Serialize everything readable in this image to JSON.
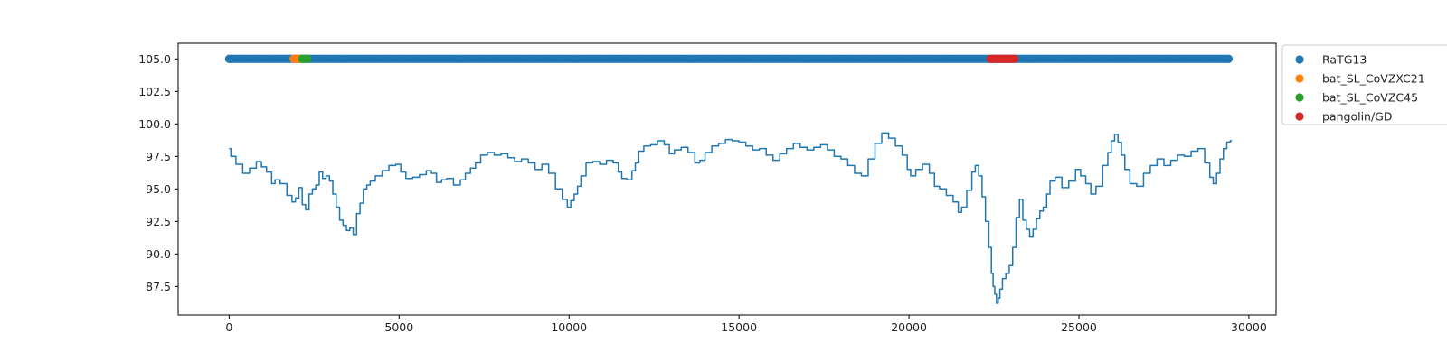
{
  "chart_data": {
    "type": "line",
    "title": "",
    "xlabel": "",
    "ylabel": "",
    "xlim": [
      -1500,
      30800
    ],
    "ylim": [
      85.3,
      106.2
    ],
    "x_ticks": [
      0,
      5000,
      10000,
      15000,
      20000,
      25000,
      30000
    ],
    "y_ticks": [
      87.5,
      90.0,
      92.5,
      95.0,
      97.5,
      100.0,
      102.5,
      105.0
    ],
    "y_tick_labels": [
      "87.5",
      "90.0",
      "92.5",
      "95.0",
      "97.5",
      "100.0",
      "102.5",
      "105.0"
    ],
    "grid": false,
    "legend_location": "outside-upper-right",
    "identity_line": {
      "color": "#1f77b4",
      "points": [
        [
          0,
          98.1
        ],
        [
          100,
          97.5
        ],
        [
          300,
          96.9
        ],
        [
          500,
          96.2
        ],
        [
          700,
          96.6
        ],
        [
          900,
          97.1
        ],
        [
          1000,
          96.7
        ],
        [
          1200,
          96.3
        ],
        [
          1300,
          95.4
        ],
        [
          1400,
          95.7
        ],
        [
          1600,
          95.4
        ],
        [
          1800,
          94.5
        ],
        [
          1900,
          94.0
        ],
        [
          2000,
          94.3
        ],
        [
          2100,
          95.1
        ],
        [
          2200,
          93.8
        ],
        [
          2300,
          93.4
        ],
        [
          2400,
          94.6
        ],
        [
          2500,
          95.0
        ],
        [
          2600,
          95.3
        ],
        [
          2700,
          96.3
        ],
        [
          2800,
          95.8
        ],
        [
          2900,
          96.0
        ],
        [
          3000,
          95.6
        ],
        [
          3100,
          94.6
        ],
        [
          3200,
          93.6
        ],
        [
          3300,
          92.6
        ],
        [
          3400,
          92.2
        ],
        [
          3500,
          91.8
        ],
        [
          3600,
          92.0
        ],
        [
          3700,
          91.5
        ],
        [
          3800,
          93.1
        ],
        [
          3900,
          93.9
        ],
        [
          4000,
          95.0
        ],
        [
          4100,
          95.3
        ],
        [
          4200,
          95.6
        ],
        [
          4400,
          96.0
        ],
        [
          4600,
          96.4
        ],
        [
          4800,
          96.8
        ],
        [
          5000,
          96.9
        ],
        [
          5100,
          96.3
        ],
        [
          5300,
          95.8
        ],
        [
          5500,
          95.9
        ],
        [
          5700,
          96.1
        ],
        [
          5900,
          96.4
        ],
        [
          6000,
          96.2
        ],
        [
          6200,
          95.5
        ],
        [
          6300,
          95.7
        ],
        [
          6500,
          95.8
        ],
        [
          6700,
          95.3
        ],
        [
          6900,
          95.7
        ],
        [
          7000,
          96.2
        ],
        [
          7200,
          96.6
        ],
        [
          7300,
          97.0
        ],
        [
          7500,
          97.6
        ],
        [
          7700,
          97.8
        ],
        [
          7900,
          97.6
        ],
        [
          8100,
          97.7
        ],
        [
          8300,
          97.4
        ],
        [
          8500,
          97.1
        ],
        [
          8700,
          97.3
        ],
        [
          8900,
          97.0
        ],
        [
          9100,
          96.5
        ],
        [
          9300,
          96.9
        ],
        [
          9500,
          96.2
        ],
        [
          9700,
          95.0
        ],
        [
          9900,
          94.2
        ],
        [
          10000,
          93.6
        ],
        [
          10100,
          94.1
        ],
        [
          10200,
          94.6
        ],
        [
          10300,
          95.2
        ],
        [
          10400,
          96.0
        ],
        [
          10600,
          97.0
        ],
        [
          10800,
          97.1
        ],
        [
          11000,
          96.9
        ],
        [
          11200,
          97.2
        ],
        [
          11400,
          97.0
        ],
        [
          11500,
          96.3
        ],
        [
          11600,
          95.8
        ],
        [
          11800,
          95.7
        ],
        [
          11900,
          96.4
        ],
        [
          12000,
          97.0
        ],
        [
          12100,
          97.9
        ],
        [
          12300,
          98.3
        ],
        [
          12500,
          98.4
        ],
        [
          12700,
          98.7
        ],
        [
          12900,
          98.4
        ],
        [
          13000,
          97.7
        ],
        [
          13200,
          98.0
        ],
        [
          13400,
          98.2
        ],
        [
          13600,
          97.8
        ],
        [
          13800,
          97.0
        ],
        [
          13900,
          97.2
        ],
        [
          14100,
          97.8
        ],
        [
          14300,
          98.3
        ],
        [
          14500,
          98.5
        ],
        [
          14700,
          98.8
        ],
        [
          14900,
          98.7
        ],
        [
          15100,
          98.6
        ],
        [
          15300,
          98.3
        ],
        [
          15500,
          98.0
        ],
        [
          15700,
          98.1
        ],
        [
          15900,
          97.6
        ],
        [
          16100,
          97.2
        ],
        [
          16300,
          97.7
        ],
        [
          16500,
          98.1
        ],
        [
          16700,
          98.5
        ],
        [
          16900,
          98.2
        ],
        [
          17100,
          98.0
        ],
        [
          17300,
          98.2
        ],
        [
          17500,
          98.4
        ],
        [
          17700,
          98.0
        ],
        [
          17900,
          97.5
        ],
        [
          18100,
          97.3
        ],
        [
          18300,
          96.8
        ],
        [
          18500,
          96.2
        ],
        [
          18700,
          96.0
        ],
        [
          18900,
          97.3
        ],
        [
          19100,
          98.5
        ],
        [
          19300,
          99.3
        ],
        [
          19500,
          98.9
        ],
        [
          19700,
          98.3
        ],
        [
          19900,
          97.6
        ],
        [
          20000,
          96.5
        ],
        [
          20100,
          96.0
        ],
        [
          20300,
          96.5
        ],
        [
          20500,
          96.9
        ],
        [
          20700,
          96.2
        ],
        [
          20800,
          95.2
        ],
        [
          21000,
          95.0
        ],
        [
          21200,
          94.5
        ],
        [
          21400,
          94.0
        ],
        [
          21500,
          93.2
        ],
        [
          21600,
          93.6
        ],
        [
          21800,
          94.9
        ],
        [
          21900,
          96.3
        ],
        [
          22000,
          96.8
        ],
        [
          22100,
          96.0
        ],
        [
          22200,
          94.4
        ],
        [
          22300,
          92.5
        ],
        [
          22400,
          90.5
        ],
        [
          22450,
          88.5
        ],
        [
          22500,
          87.5
        ],
        [
          22550,
          86.9
        ],
        [
          22600,
          86.2
        ],
        [
          22650,
          86.6
        ],
        [
          22700,
          87.3
        ],
        [
          22800,
          88.1
        ],
        [
          22900,
          88.5
        ],
        [
          23000,
          89.1
        ],
        [
          23100,
          90.5
        ],
        [
          23200,
          92.8
        ],
        [
          23300,
          94.2
        ],
        [
          23400,
          92.6
        ],
        [
          23500,
          91.9
        ],
        [
          23600,
          91.3
        ],
        [
          23700,
          91.9
        ],
        [
          23800,
          92.7
        ],
        [
          23900,
          93.3
        ],
        [
          24000,
          93.6
        ],
        [
          24100,
          94.6
        ],
        [
          24200,
          95.6
        ],
        [
          24400,
          95.9
        ],
        [
          24600,
          95.1
        ],
        [
          24800,
          95.6
        ],
        [
          25000,
          96.5
        ],
        [
          25100,
          96.0
        ],
        [
          25300,
          95.4
        ],
        [
          25400,
          94.6
        ],
        [
          25600,
          95.2
        ],
        [
          25800,
          96.8
        ],
        [
          25900,
          97.8
        ],
        [
          26000,
          98.7
        ],
        [
          26100,
          99.2
        ],
        [
          26200,
          98.6
        ],
        [
          26300,
          97.6
        ],
        [
          26400,
          96.5
        ],
        [
          26600,
          95.4
        ],
        [
          26800,
          95.2
        ],
        [
          27000,
          96.2
        ],
        [
          27200,
          96.8
        ],
        [
          27400,
          97.3
        ],
        [
          27600,
          96.8
        ],
        [
          27800,
          97.2
        ],
        [
          28000,
          97.6
        ],
        [
          28200,
          97.5
        ],
        [
          28400,
          97.9
        ],
        [
          28600,
          98.1
        ],
        [
          28800,
          97.0
        ],
        [
          28900,
          95.9
        ],
        [
          29000,
          95.4
        ],
        [
          29100,
          96.2
        ],
        [
          29200,
          97.3
        ],
        [
          29300,
          98.1
        ],
        [
          29400,
          98.6
        ],
        [
          29500,
          98.7
        ]
      ]
    },
    "scatter_series": [
      {
        "name": "RaTG13",
        "color": "#1f77b4",
        "y": 105,
        "ranges": [
          [
            0,
            29400
          ]
        ]
      },
      {
        "name": "bat_SL_CoVZXC21",
        "color": "#ff7f0e",
        "y": 105,
        "ranges": [
          [
            1900,
            2050
          ]
        ]
      },
      {
        "name": "bat_SL_CoVZC45",
        "color": "#2ca02c",
        "y": 105,
        "ranges": [
          [
            2150,
            2300
          ]
        ]
      },
      {
        "name": " pangolin/GD",
        "color": "#d62728",
        "y": 105,
        "ranges": [
          [
            22400,
            23100
          ]
        ]
      }
    ]
  }
}
